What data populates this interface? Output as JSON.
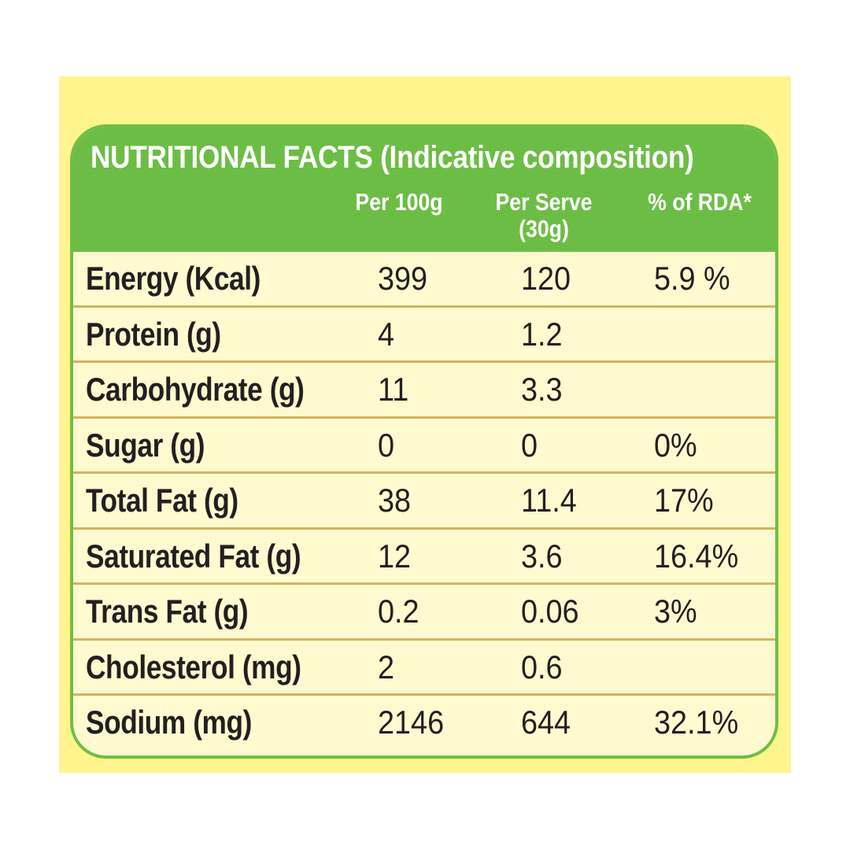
{
  "title": "NUTRITIONAL FACTS (Indicative composition)",
  "columns": {
    "per100": "Per 100g",
    "perServe": "Per Serve",
    "perServeSub": "(30g)",
    "rda": "% of RDA*"
  },
  "rows": [
    {
      "name": "Energy (Kcal)",
      "per100": "399",
      "perServe": "120",
      "rda": "5.9 %"
    },
    {
      "name": "Protein (g)",
      "per100": "4",
      "perServe": "1.2",
      "rda": ""
    },
    {
      "name": "Carbohydrate (g)",
      "per100": "11",
      "perServe": "3.3",
      "rda": ""
    },
    {
      "name": "Sugar (g)",
      "per100": "0",
      "perServe": "0",
      "rda": "0%"
    },
    {
      "name": "Total Fat (g)",
      "per100": "38",
      "perServe": "11.4",
      "rda": "17%"
    },
    {
      "name": "Saturated Fat (g)",
      "per100": "12",
      "perServe": "3.6",
      "rda": "16.4%"
    },
    {
      "name": "Trans Fat (g)",
      "per100": "0.2",
      "perServe": "0.06",
      "rda": "3%"
    },
    {
      "name": "Cholesterol (mg)",
      "per100": "2",
      "perServe": "0.6",
      "rda": ""
    },
    {
      "name": "Sodium (mg)",
      "per100": "2146",
      "perServe": "644",
      "rda": "32.1%"
    }
  ],
  "colors": {
    "background": "#fff48e",
    "header": "#6cbd45",
    "panel": "#fffad0",
    "divider": "#d6b35a",
    "text": "#231f20"
  }
}
